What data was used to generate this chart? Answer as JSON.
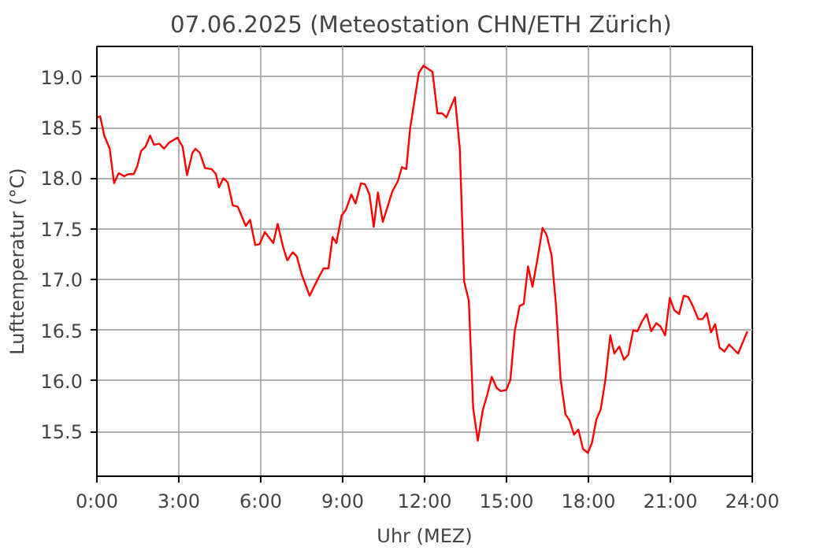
{
  "chart_data": {
    "type": "line",
    "title": "07.06.2025  (Meteostation CHN/ETH Zürich)",
    "xlabel": "Uhr (MEZ)",
    "ylabel": "Lufttemperatur (°C)",
    "xlim": [
      0,
      24
    ],
    "ylim": [
      15.06,
      19.3
    ],
    "xticks": [
      {
        "value": 0,
        "label": "0:00"
      },
      {
        "value": 3,
        "label": "3:00"
      },
      {
        "value": 6,
        "label": "6:00"
      },
      {
        "value": 9,
        "label": "9:00"
      },
      {
        "value": 12,
        "label": "12:00"
      },
      {
        "value": 15,
        "label": "15:00"
      },
      {
        "value": 18,
        "label": "18:00"
      },
      {
        "value": 21,
        "label": "21:00"
      },
      {
        "value": 24,
        "label": "24:00"
      }
    ],
    "yticks": [
      {
        "value": 15.5,
        "label": "15.5"
      },
      {
        "value": 16,
        "label": "16.0"
      },
      {
        "value": 16.5,
        "label": "16.5"
      },
      {
        "value": 17,
        "label": "17.0"
      },
      {
        "value": 17.5,
        "label": "17.5"
      },
      {
        "value": 18,
        "label": "18.0"
      },
      {
        "value": 18.5,
        "label": "18.5"
      },
      {
        "value": 19,
        "label": "19.0"
      }
    ],
    "grid": true,
    "line_style": "solid",
    "x": [
      0,
      0.12,
      0.27,
      0.47,
      0.63,
      0.8,
      1.0,
      1.15,
      1.35,
      1.48,
      1.62,
      1.78,
      1.95,
      2.09,
      2.29,
      2.46,
      2.64,
      2.95,
      3.14,
      3.3,
      3.5,
      3.61,
      3.77,
      3.96,
      4.2,
      4.36,
      4.47,
      4.63,
      4.79,
      4.98,
      5.16,
      5.45,
      5.61,
      5.8,
      5.96,
      6.15,
      6.46,
      6.62,
      6.82,
      6.97,
      7.17,
      7.32,
      7.5,
      7.79,
      8.1,
      8.3,
      8.48,
      8.63,
      8.77,
      8.96,
      9.12,
      9.32,
      9.47,
      9.67,
      9.82,
      9.98,
      10.14,
      10.29,
      10.47,
      10.82,
      11.02,
      11.17,
      11.33,
      11.47,
      11.79,
      11.96,
      12.29,
      12.47,
      12.64,
      12.8,
      13.11,
      13.29,
      13.45,
      13.62,
      13.78,
      13.95,
      14.13,
      14.29,
      14.46,
      14.64,
      14.79,
      14.99,
      15.14,
      15.3,
      15.48,
      15.63,
      15.79,
      15.95,
      16.12,
      16.32,
      16.47,
      16.65,
      16.82,
      16.98,
      17.16,
      17.31,
      17.47,
      17.63,
      17.8,
      17.98,
      18.13,
      18.29,
      18.45,
      18.62,
      18.8,
      18.95,
      19.13,
      19.3,
      19.46,
      19.64,
      19.79,
      19.97,
      20.13,
      20.3,
      20.48,
      20.63,
      20.81,
      20.98,
      21.14,
      21.32,
      21.49,
      21.65,
      21.82,
      22.02,
      22.18,
      22.33,
      22.49,
      22.64,
      22.8,
      22.98,
      23.15,
      23.33,
      23.48,
      23.82
    ],
    "series": [
      {
        "color": "#ff0000",
        "values": [
          18.6,
          18.61,
          18.42,
          18.29,
          17.95,
          18.05,
          18.02,
          18.04,
          18.04,
          18.12,
          18.27,
          18.31,
          18.42,
          18.33,
          18.34,
          18.29,
          18.35,
          18.4,
          18.31,
          18.03,
          18.25,
          18.29,
          18.25,
          18.1,
          18.09,
          18.04,
          17.91,
          18.0,
          17.96,
          17.73,
          17.72,
          17.53,
          17.59,
          17.34,
          17.35,
          17.47,
          17.36,
          17.55,
          17.32,
          17.19,
          17.27,
          17.23,
          17.05,
          16.84,
          17.01,
          17.11,
          17.11,
          17.42,
          17.36,
          17.63,
          17.69,
          17.84,
          17.75,
          17.95,
          17.94,
          17.84,
          17.52,
          17.86,
          17.57,
          17.87,
          17.97,
          18.11,
          18.09,
          18.49,
          19.04,
          19.11,
          19.05,
          18.64,
          18.64,
          18.6,
          18.8,
          18.29,
          16.98,
          16.79,
          15.73,
          15.41,
          15.71,
          15.86,
          16.04,
          15.93,
          15.9,
          15.91,
          16.01,
          16.49,
          16.74,
          16.76,
          17.13,
          16.93,
          17.18,
          17.51,
          17.44,
          17.24,
          16.72,
          16.02,
          15.67,
          15.61,
          15.47,
          15.52,
          15.33,
          15.29,
          15.39,
          15.62,
          15.72,
          16.01,
          16.45,
          16.27,
          16.34,
          16.21,
          16.26,
          16.5,
          16.49,
          16.59,
          16.66,
          16.49,
          16.57,
          16.54,
          16.45,
          16.82,
          16.7,
          16.66,
          16.84,
          16.83,
          16.74,
          16.61,
          16.61,
          16.67,
          16.48,
          16.56,
          16.33,
          16.29,
          16.36,
          16.31,
          16.27,
          16.49
        ]
      }
    ]
  }
}
